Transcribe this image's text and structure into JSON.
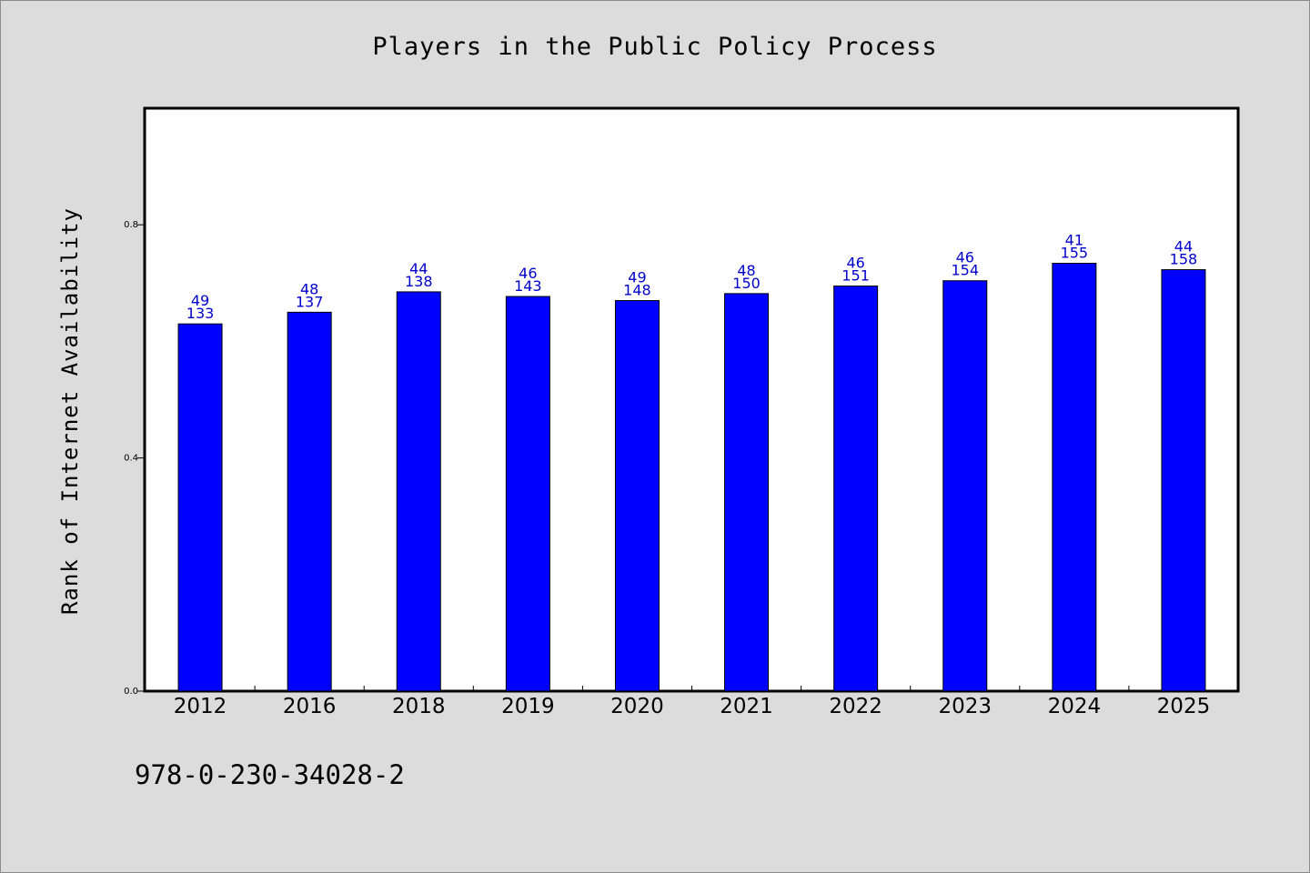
{
  "chart_data": {
    "type": "bar",
    "title": "Players in the Public Policy Process",
    "xlabel": "",
    "ylabel": "Rank of Internet Availability",
    "ylim": [
      0,
      1.0
    ],
    "yticks": [
      "0.0",
      "0.4",
      "0.8"
    ],
    "categories": [
      "2012",
      "2016",
      "2018",
      "2019",
      "2020",
      "2021",
      "2022",
      "2023",
      "2024",
      "2025"
    ],
    "values": [
      0.63,
      0.65,
      0.685,
      0.677,
      0.67,
      0.682,
      0.695,
      0.704,
      0.734,
      0.723
    ],
    "label_top": [
      "49",
      "48",
      "44",
      "46",
      "49",
      "48",
      "46",
      "46",
      "41",
      "44"
    ],
    "label_bottom": [
      "133",
      "137",
      "138",
      "143",
      "148",
      "150",
      "151",
      "154",
      "155",
      "158"
    ],
    "bar_color": "#0000ff",
    "label_color": "#0000cc",
    "grid": false,
    "legend": "none"
  },
  "footnote": "978-0-230-34028-2"
}
